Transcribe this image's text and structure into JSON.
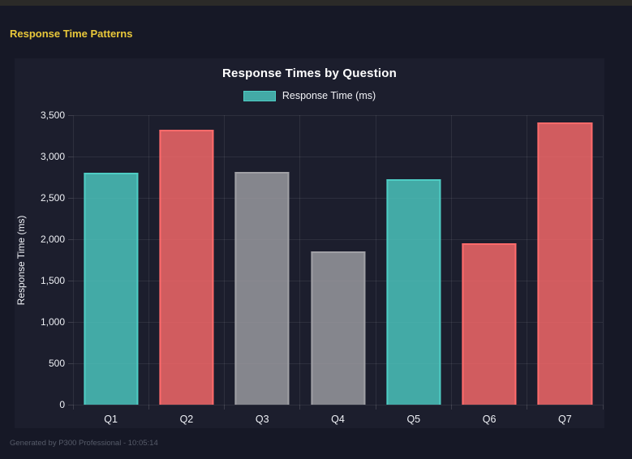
{
  "window": {
    "header_title": "Response Time Patterns",
    "footer_note": "Generated by P300 Professional - 10:05:14"
  },
  "chart_data": {
    "type": "bar",
    "title": "Response Times by Question",
    "legend": {
      "label": "Response Time (ms)",
      "swatch_color": "#4ecdc4",
      "position": "top"
    },
    "categories": [
      "Q1",
      "Q2",
      "Q3",
      "Q4",
      "Q5",
      "Q6",
      "Q7"
    ],
    "series": [
      {
        "name": "Response Time (ms)",
        "values": [
          2805,
          3325,
          2815,
          1850,
          2730,
          1950,
          3410
        ]
      }
    ],
    "bar_colors": [
      "#4ecdc4",
      "#ff6b6b",
      "#a0a0a5",
      "#a0a0a5",
      "#4ecdc4",
      "#ff6b6b",
      "#ff6b6b"
    ],
    "bar_fill_alpha": 0.8,
    "xlabel": "",
    "ylabel": "Response Time (ms)",
    "ylim": [
      0,
      3500
    ],
    "ytick_step": 500,
    "ytick_labels": [
      "0",
      "500",
      "1,000",
      "1,500",
      "2,000",
      "2,500",
      "3,000",
      "3,500"
    ],
    "grid": true
  },
  "theme": {
    "page_background": "#161826",
    "top_strip": "#2b2a28",
    "panel_background": "#1c1e2d",
    "header_color": "#e9c83a",
    "text_color": "#eef0f5",
    "muted_color": "#565b69",
    "grid_color": "rgba(255,255,255,0.08)"
  }
}
